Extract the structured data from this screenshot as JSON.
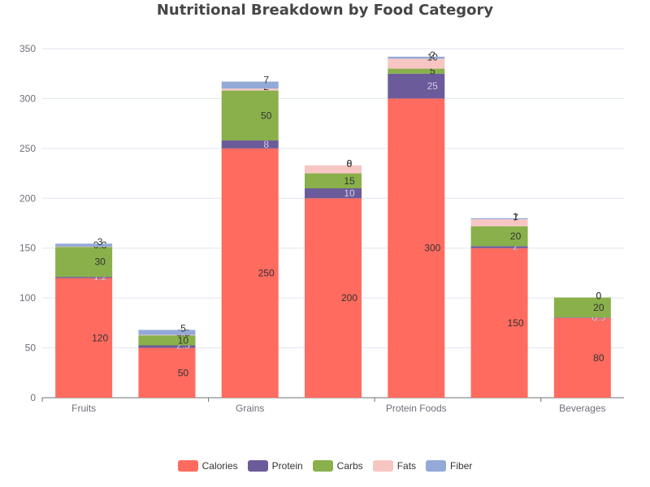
{
  "chart_data": {
    "type": "bar",
    "stacked": true,
    "title": "Nutritional Breakdown by Food Category",
    "xlabel": "",
    "ylabel": "",
    "ylim": [
      0,
      350
    ],
    "yticks": [
      0,
      50,
      100,
      150,
      200,
      250,
      300,
      350
    ],
    "grid": true,
    "legend_position": "bottom",
    "categories": [
      "Fruits",
      "",
      "Grains",
      "",
      "Protein Foods",
      "",
      "Beverages"
    ],
    "series": [
      {
        "name": "Calories",
        "color": "#ff6b5f",
        "values": [
          120,
          50,
          250,
          200,
          300,
          150,
          80
        ]
      },
      {
        "name": "Protein",
        "color": "#6c5b9a",
        "values": [
          1.2,
          2.5,
          8,
          10,
          25,
          2,
          0.5
        ]
      },
      {
        "name": "Carbs",
        "color": "#89b04a",
        "values": [
          30,
          10,
          50,
          15,
          5,
          20,
          20
        ]
      },
      {
        "name": "Fats",
        "color": "#f7c6c3",
        "values": [
          0.3,
          0.5,
          2,
          8,
          10,
          7,
          0
        ]
      },
      {
        "name": "Fiber",
        "color": "#93a9d7",
        "values": [
          3,
          5,
          7,
          0,
          2,
          1,
          0
        ]
      }
    ]
  }
}
